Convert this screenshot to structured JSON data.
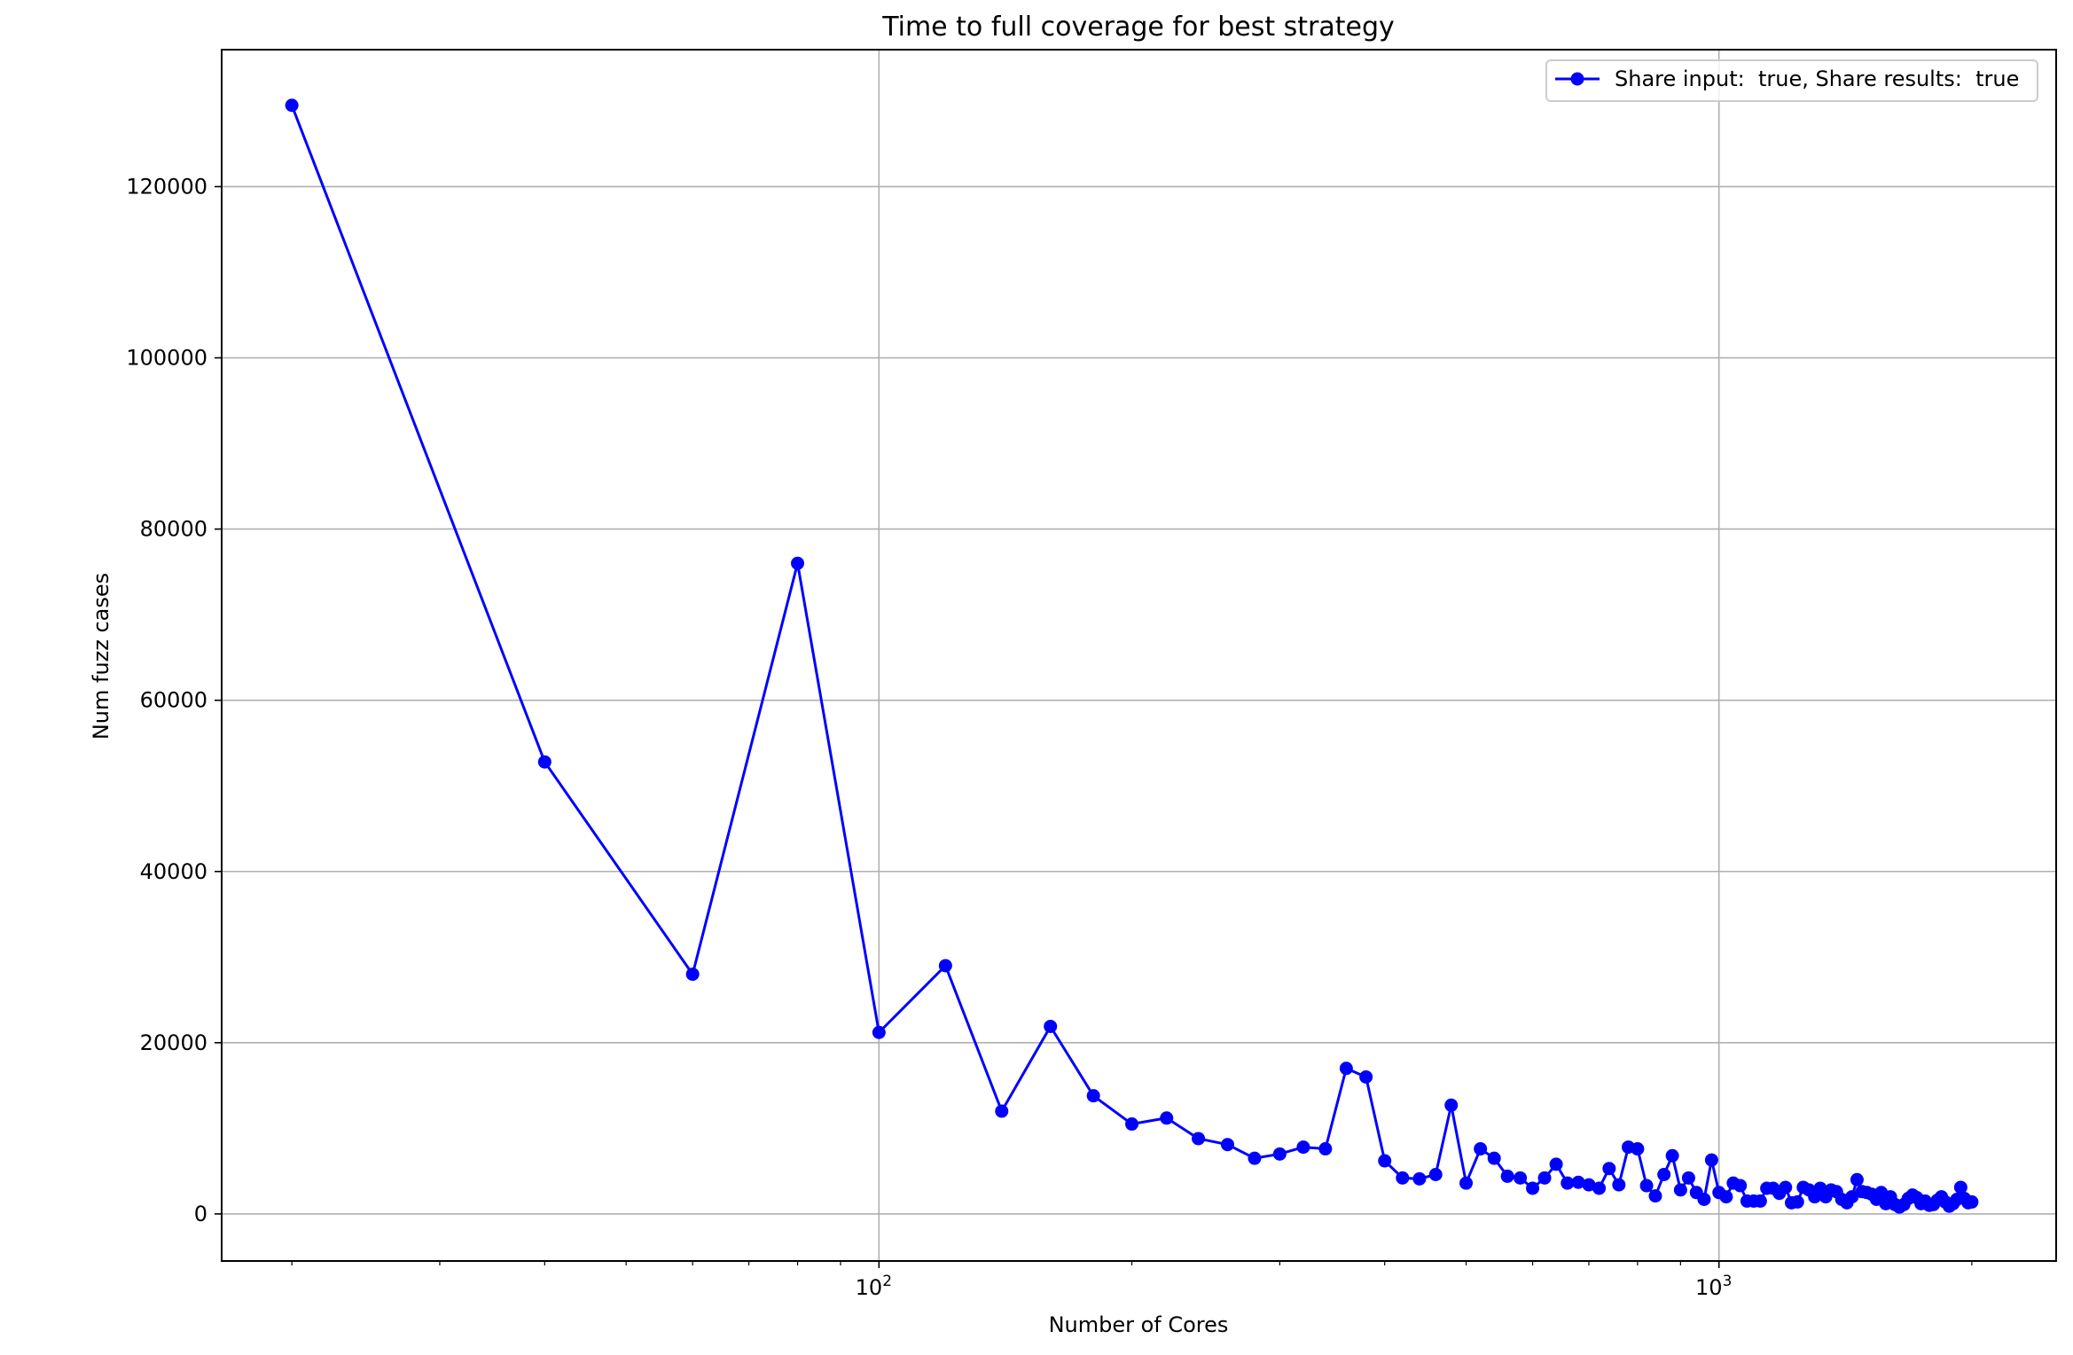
{
  "chart_data": {
    "type": "line",
    "title": "Time to full coverage for best strategy",
    "xlabel": "Number of Cores",
    "ylabel": "Num fuzz cases",
    "xscale": "log",
    "xlim": [
      16.5,
      2520
    ],
    "ylim": [
      -5500,
      136000
    ],
    "xticks": [
      {
        "value": 100,
        "base": "10",
        "exp": "2"
      },
      {
        "value": 1000,
        "base": "10",
        "exp": "3"
      }
    ],
    "yticks": [
      0,
      20000,
      40000,
      60000,
      80000,
      100000,
      120000
    ],
    "ytick_labels": [
      "0",
      "20000",
      "40000",
      "60000",
      "80000",
      "100000",
      "120000"
    ],
    "grid": true,
    "legend_position": "upper right",
    "series": [
      {
        "name": "Share input:  true, Share results:  true",
        "color": "#0000ff",
        "marker": "circle",
        "x": [
          20,
          40,
          60,
          80,
          100,
          120,
          140,
          160,
          180,
          200,
          220,
          240,
          260,
          280,
          300,
          320,
          340,
          360,
          380,
          400,
          420,
          440,
          460,
          480,
          500,
          520,
          540,
          560,
          580,
          600,
          620,
          640,
          660,
          680,
          700,
          720,
          740,
          760,
          780,
          800,
          820,
          840,
          860,
          880,
          900,
          920,
          940,
          960,
          980,
          1000,
          1020,
          1040,
          1060,
          1080,
          1100,
          1120,
          1140,
          1160,
          1180,
          1200,
          1220,
          1240,
          1260,
          1280,
          1300,
          1320,
          1340,
          1360,
          1380,
          1400,
          1420,
          1440,
          1460,
          1480,
          1500,
          1520,
          1540,
          1560,
          1580,
          1600,
          1620,
          1640,
          1660,
          1680,
          1700,
          1720,
          1740,
          1760,
          1780,
          1800,
          1820,
          1840,
          1860,
          1880,
          1900,
          1920,
          1940,
          1960,
          1980,
          2000
        ],
        "y": [
          129500,
          52800,
          28000,
          76000,
          21200,
          29000,
          12000,
          21900,
          13800,
          10500,
          11200,
          8800,
          8100,
          6500,
          7000,
          7800,
          7600,
          17000,
          16000,
          6200,
          4200,
          4100,
          4600,
          12700,
          3600,
          7600,
          6500,
          4400,
          4200,
          3000,
          4200,
          5800,
          3600,
          3700,
          3400,
          3000,
          5300,
          3400,
          7800,
          7600,
          3300,
          2100,
          4600,
          6800,
          2800,
          4200,
          2500,
          1700,
          6300,
          2500,
          2000,
          3600,
          3300,
          1500,
          1500,
          1500,
          3000,
          3000,
          2400,
          3100,
          1300,
          1400,
          3100,
          2800,
          2000,
          3000,
          2000,
          2800,
          2600,
          1700,
          1300,
          2000,
          4000,
          2600,
          2500,
          2300,
          1700,
          2500,
          1200,
          2000,
          1100,
          800,
          1100,
          1800,
          2200,
          1900,
          1200,
          1500,
          1000,
          1100,
          1600,
          2000,
          1400,
          900,
          1200,
          1700,
          3100,
          1800,
          1300,
          1400
        ]
      }
    ]
  }
}
